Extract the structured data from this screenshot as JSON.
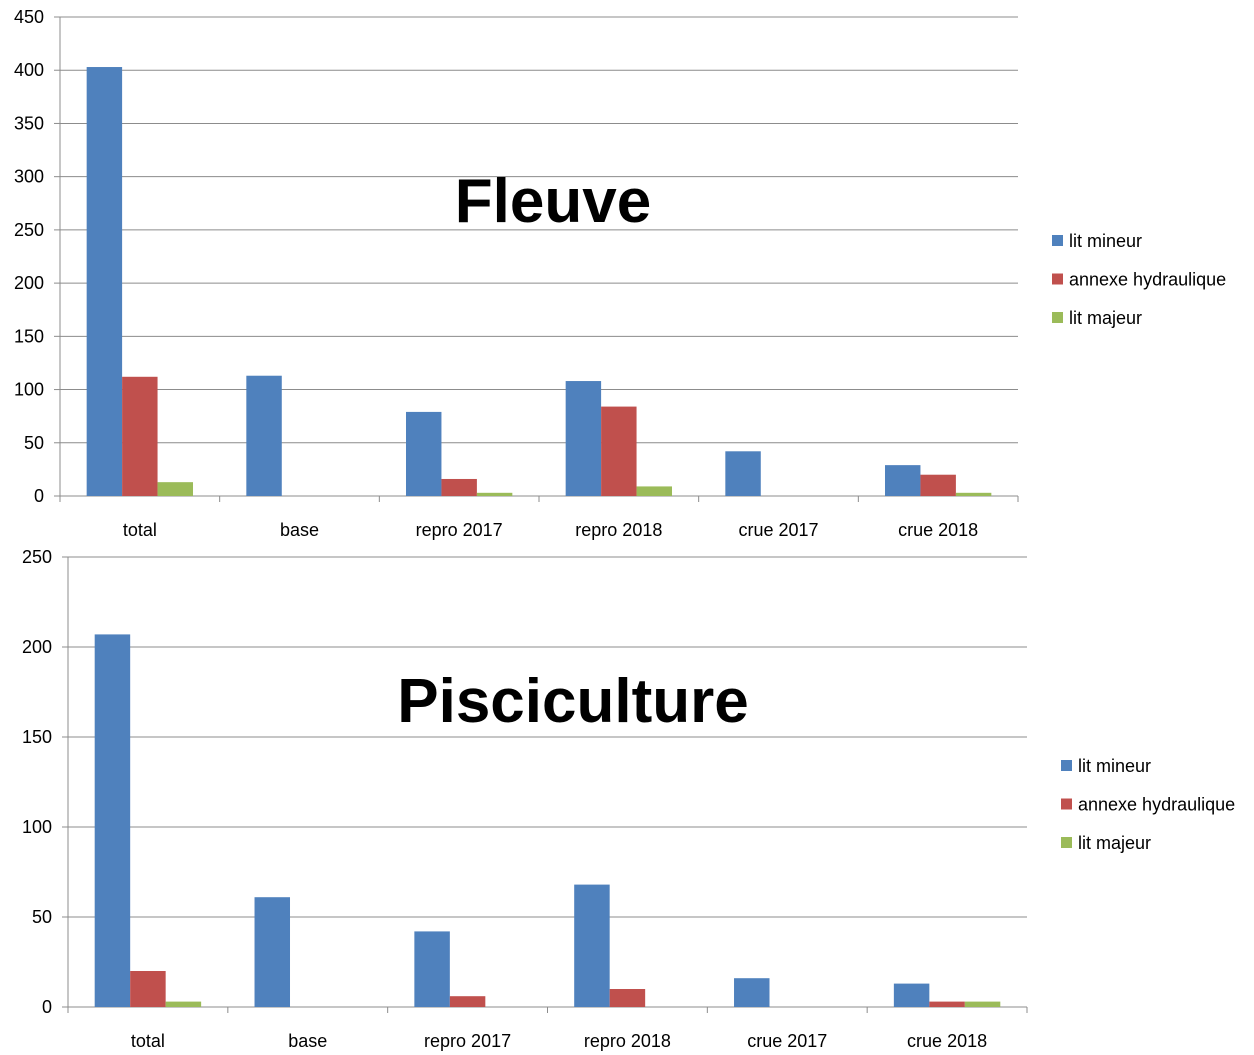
{
  "chart_data": [
    {
      "type": "bar",
      "title": "Fleuve",
      "categories": [
        "total",
        "base",
        "repro 2017",
        "repro 2018",
        "crue 2017",
        "crue 2018"
      ],
      "series": [
        {
          "name": "lit mineur",
          "color": "#4F81BD",
          "values": [
            403,
            113,
            79,
            108,
            42,
            29
          ]
        },
        {
          "name": "annexe hydraulique",
          "color": "#C0504D",
          "values": [
            112,
            0,
            16,
            84,
            0,
            20
          ]
        },
        {
          "name": "lit majeur",
          "color": "#9BBB59",
          "values": [
            13,
            0,
            3,
            9,
            0,
            3
          ]
        }
      ],
      "ylim": [
        0,
        450
      ],
      "yticks": [
        0,
        50,
        100,
        150,
        200,
        250,
        300,
        350,
        400,
        450
      ],
      "grid": true,
      "legend": "right"
    },
    {
      "type": "bar",
      "title": "Pisciculture",
      "categories": [
        "total",
        "base",
        "repro 2017",
        "repro 2018",
        "crue 2017",
        "crue 2018"
      ],
      "series": [
        {
          "name": "lit mineur",
          "color": "#4F81BD",
          "values": [
            207,
            61,
            42,
            68,
            16,
            13
          ]
        },
        {
          "name": "annexe hydraulique",
          "color": "#C0504D",
          "values": [
            20,
            0,
            6,
            10,
            0,
            3
          ]
        },
        {
          "name": "lit majeur",
          "color": "#9BBB59",
          "values": [
            3,
            0,
            0,
            0,
            0,
            3
          ]
        }
      ],
      "ylim": [
        0,
        250
      ],
      "yticks": [
        0,
        50,
        100,
        150,
        200,
        250
      ],
      "grid": true,
      "legend": "right"
    }
  ]
}
